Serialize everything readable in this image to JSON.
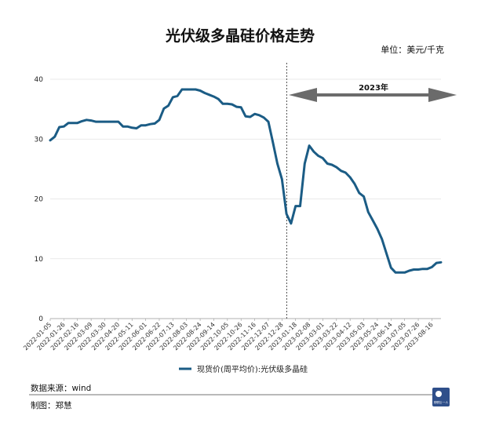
{
  "chart_data": {
    "type": "line",
    "title": "光伏级多晶硅价格走势",
    "unit_label": "单位：美元/千克",
    "ylim": [
      0,
      40
    ],
    "y_ticks": [
      "0",
      "10",
      "20",
      "30",
      "40"
    ],
    "grid": true,
    "legend_position": "bottom",
    "x_tick_labels": [
      "2022-01-05",
      "2022-01-26",
      "2022-02-16",
      "2022-03-09",
      "2022-03-30",
      "2022-04-20",
      "2022-05-11",
      "2022-06-01",
      "2022-06-22",
      "2022-07-13",
      "2022-08-03",
      "2022-08-24",
      "2022-09-14",
      "2022-10-05",
      "2022-10-26",
      "2022-11-16",
      "2022-12-07",
      "2022-12-28",
      "2023-01-18",
      "2023-02-08",
      "2023-03-01",
      "2023-03-22",
      "2023-04-12",
      "2023-05-03",
      "2023-05-24",
      "2023-06-14",
      "2023-07-05",
      "2023-07-26",
      "2023-08-16"
    ],
    "series": [
      {
        "name": "现货价(周平均价):光伏级多晶硅",
        "color": "#1b5c85",
        "points": [
          [
            "2022-01-05",
            29.8
          ],
          [
            "2022-01-12",
            30.4
          ],
          [
            "2022-01-19",
            32.0
          ],
          [
            "2022-01-26",
            32.1
          ],
          [
            "2022-02-02",
            32.7
          ],
          [
            "2022-02-09",
            32.7
          ],
          [
            "2022-02-16",
            32.7
          ],
          [
            "2022-02-23",
            33.0
          ],
          [
            "2022-03-02",
            33.2
          ],
          [
            "2022-03-09",
            33.1
          ],
          [
            "2022-03-16",
            32.9
          ],
          [
            "2022-03-23",
            32.9
          ],
          [
            "2022-03-30",
            32.9
          ],
          [
            "2022-04-06",
            32.9
          ],
          [
            "2022-04-13",
            32.9
          ],
          [
            "2022-04-20",
            32.9
          ],
          [
            "2022-04-27",
            32.1
          ],
          [
            "2022-05-04",
            32.1
          ],
          [
            "2022-05-11",
            31.9
          ],
          [
            "2022-05-18",
            31.8
          ],
          [
            "2022-05-25",
            32.3
          ],
          [
            "2022-06-01",
            32.3
          ],
          [
            "2022-06-08",
            32.5
          ],
          [
            "2022-06-15",
            32.6
          ],
          [
            "2022-06-22",
            33.2
          ],
          [
            "2022-06-29",
            35.1
          ],
          [
            "2022-07-06",
            35.6
          ],
          [
            "2022-07-13",
            37.0
          ],
          [
            "2022-07-20",
            37.2
          ],
          [
            "2022-07-27",
            38.3
          ],
          [
            "2022-08-03",
            38.3
          ],
          [
            "2022-08-10",
            38.3
          ],
          [
            "2022-08-17",
            38.3
          ],
          [
            "2022-08-24",
            38.1
          ],
          [
            "2022-08-31",
            37.7
          ],
          [
            "2022-09-07",
            37.4
          ],
          [
            "2022-09-14",
            37.1
          ],
          [
            "2022-09-21",
            36.7
          ],
          [
            "2022-09-28",
            35.9
          ],
          [
            "2022-10-05",
            35.9
          ],
          [
            "2022-10-12",
            35.8
          ],
          [
            "2022-10-19",
            35.4
          ],
          [
            "2022-10-26",
            35.3
          ],
          [
            "2022-11-02",
            33.8
          ],
          [
            "2022-11-09",
            33.7
          ],
          [
            "2022-11-16",
            34.2
          ],
          [
            "2022-11-23",
            34.0
          ],
          [
            "2022-11-30",
            33.6
          ],
          [
            "2022-12-07",
            32.9
          ],
          [
            "2022-12-14",
            29.5
          ],
          [
            "2022-12-21",
            25.9
          ],
          [
            "2022-12-28",
            23.3
          ],
          [
            "2023-01-04",
            17.5
          ],
          [
            "2023-01-11",
            15.9
          ],
          [
            "2023-01-18",
            18.8
          ],
          [
            "2023-01-25",
            18.8
          ],
          [
            "2023-02-01",
            25.9
          ],
          [
            "2023-02-08",
            28.9
          ],
          [
            "2023-02-15",
            27.9
          ],
          [
            "2023-02-22",
            27.2
          ],
          [
            "2023-03-01",
            26.8
          ],
          [
            "2023-03-08",
            25.9
          ],
          [
            "2023-03-15",
            25.7
          ],
          [
            "2023-03-22",
            25.3
          ],
          [
            "2023-03-29",
            24.7
          ],
          [
            "2023-04-05",
            24.4
          ],
          [
            "2023-04-12",
            23.6
          ],
          [
            "2023-04-19",
            22.5
          ],
          [
            "2023-04-26",
            21.0
          ],
          [
            "2023-05-03",
            20.4
          ],
          [
            "2023-05-10",
            17.8
          ],
          [
            "2023-05-17",
            16.4
          ],
          [
            "2023-05-24",
            15.0
          ],
          [
            "2023-05-31",
            13.3
          ],
          [
            "2023-06-07",
            10.9
          ],
          [
            "2023-06-14",
            8.5
          ],
          [
            "2023-06-21",
            7.7
          ],
          [
            "2023-06-28",
            7.7
          ],
          [
            "2023-07-05",
            7.7
          ],
          [
            "2023-07-12",
            8.0
          ],
          [
            "2023-07-19",
            8.2
          ],
          [
            "2023-07-26",
            8.2
          ],
          [
            "2023-08-02",
            8.3
          ],
          [
            "2023-08-09",
            8.3
          ],
          [
            "2023-08-16",
            8.6
          ],
          [
            "2023-08-23",
            9.3
          ],
          [
            "2023-08-30",
            9.4
          ]
        ]
      }
    ],
    "annotations": {
      "divider_date": "2022-12-28",
      "range_label": "2023年",
      "arrow_color": "#6b6b6b"
    }
  },
  "footer": {
    "source": "数据来源：wind",
    "author": "制图：郑慧"
  },
  "logo": {
    "bg_color": "#2f4f8a",
    "label": "财联社·一人"
  }
}
